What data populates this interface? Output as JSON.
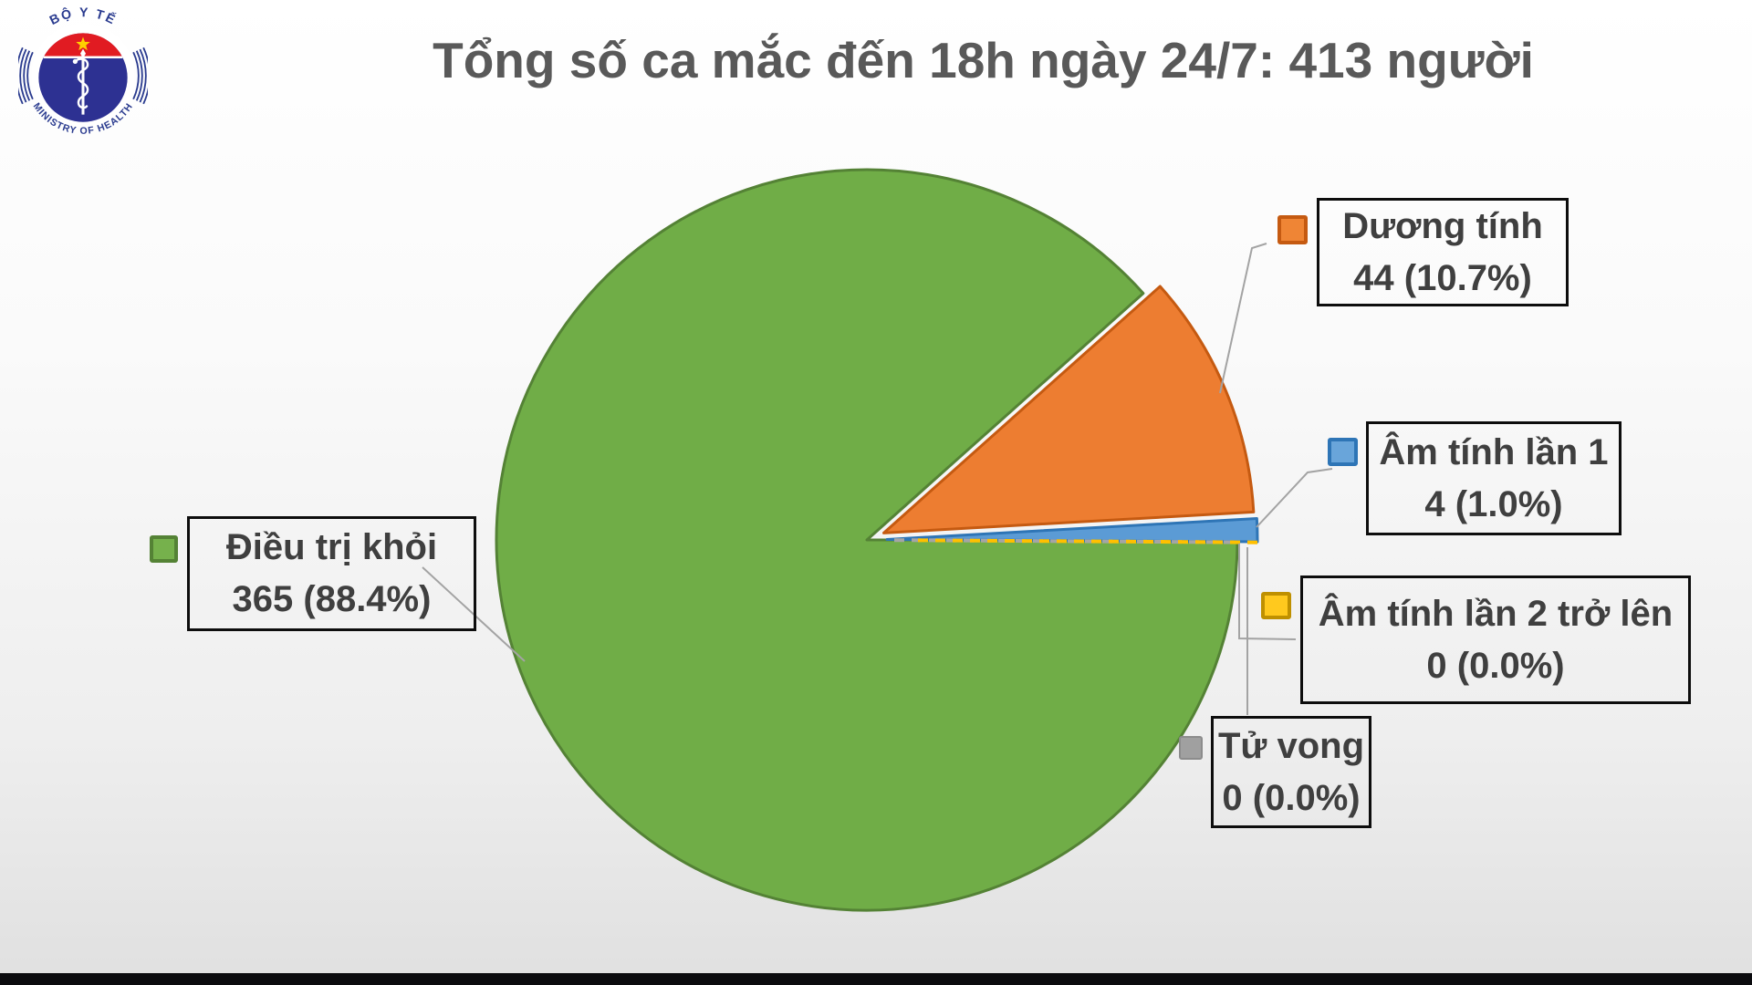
{
  "page": {
    "title": "Tổng số ca mắc đến 18h ngày 24/7: 413 người"
  },
  "logo": {
    "top_text": "BỘ Y TẾ",
    "bottom_text": "MINISTRY OF HEALTH"
  },
  "chart_data": {
    "type": "pie",
    "title": "Tổng số ca mắc đến 18h ngày 24/7: 413 người",
    "total": 413,
    "unit": "người",
    "legend_position": "callouts-around-pie",
    "slices": [
      {
        "label": "Điều trị khỏi",
        "value": 365,
        "pct": 88.4,
        "color": "#70ad47",
        "border": "#548235"
      },
      {
        "label": "Dương tính",
        "value": 44,
        "pct": 10.7,
        "color": "#ed7d31",
        "border": "#c55a11"
      },
      {
        "label": "Âm tính lần 1",
        "value": 4,
        "pct": 1.0,
        "color": "#5b9bd5",
        "border": "#2e75b6"
      },
      {
        "label": "Âm tính lần 2 trở lên",
        "value": 0,
        "pct": 0.0,
        "color": "#ffc000",
        "border": "#bf9000"
      },
      {
        "label": "Tử vong",
        "value": 0,
        "pct": 0.0,
        "color": "#a5a5a5",
        "border": "#8c8c8c"
      }
    ]
  },
  "callouts": {
    "dieu_tri_khoi": {
      "line1": "Điều trị khỏi",
      "line2": "365 (88.4%)"
    },
    "duong_tinh": {
      "line1": "Dương tính",
      "line2": "44 (10.7%)"
    },
    "am_tinh_1": {
      "line1": "Âm tính lần 1",
      "line2": "4 (1.0%)"
    },
    "am_tinh_2": {
      "line1": "Âm tính lần 2 trở lên",
      "line2": "0 (0.0%)"
    },
    "tu_vong": {
      "line1": "Tử vong",
      "line2": "0 (0.0%)"
    }
  }
}
